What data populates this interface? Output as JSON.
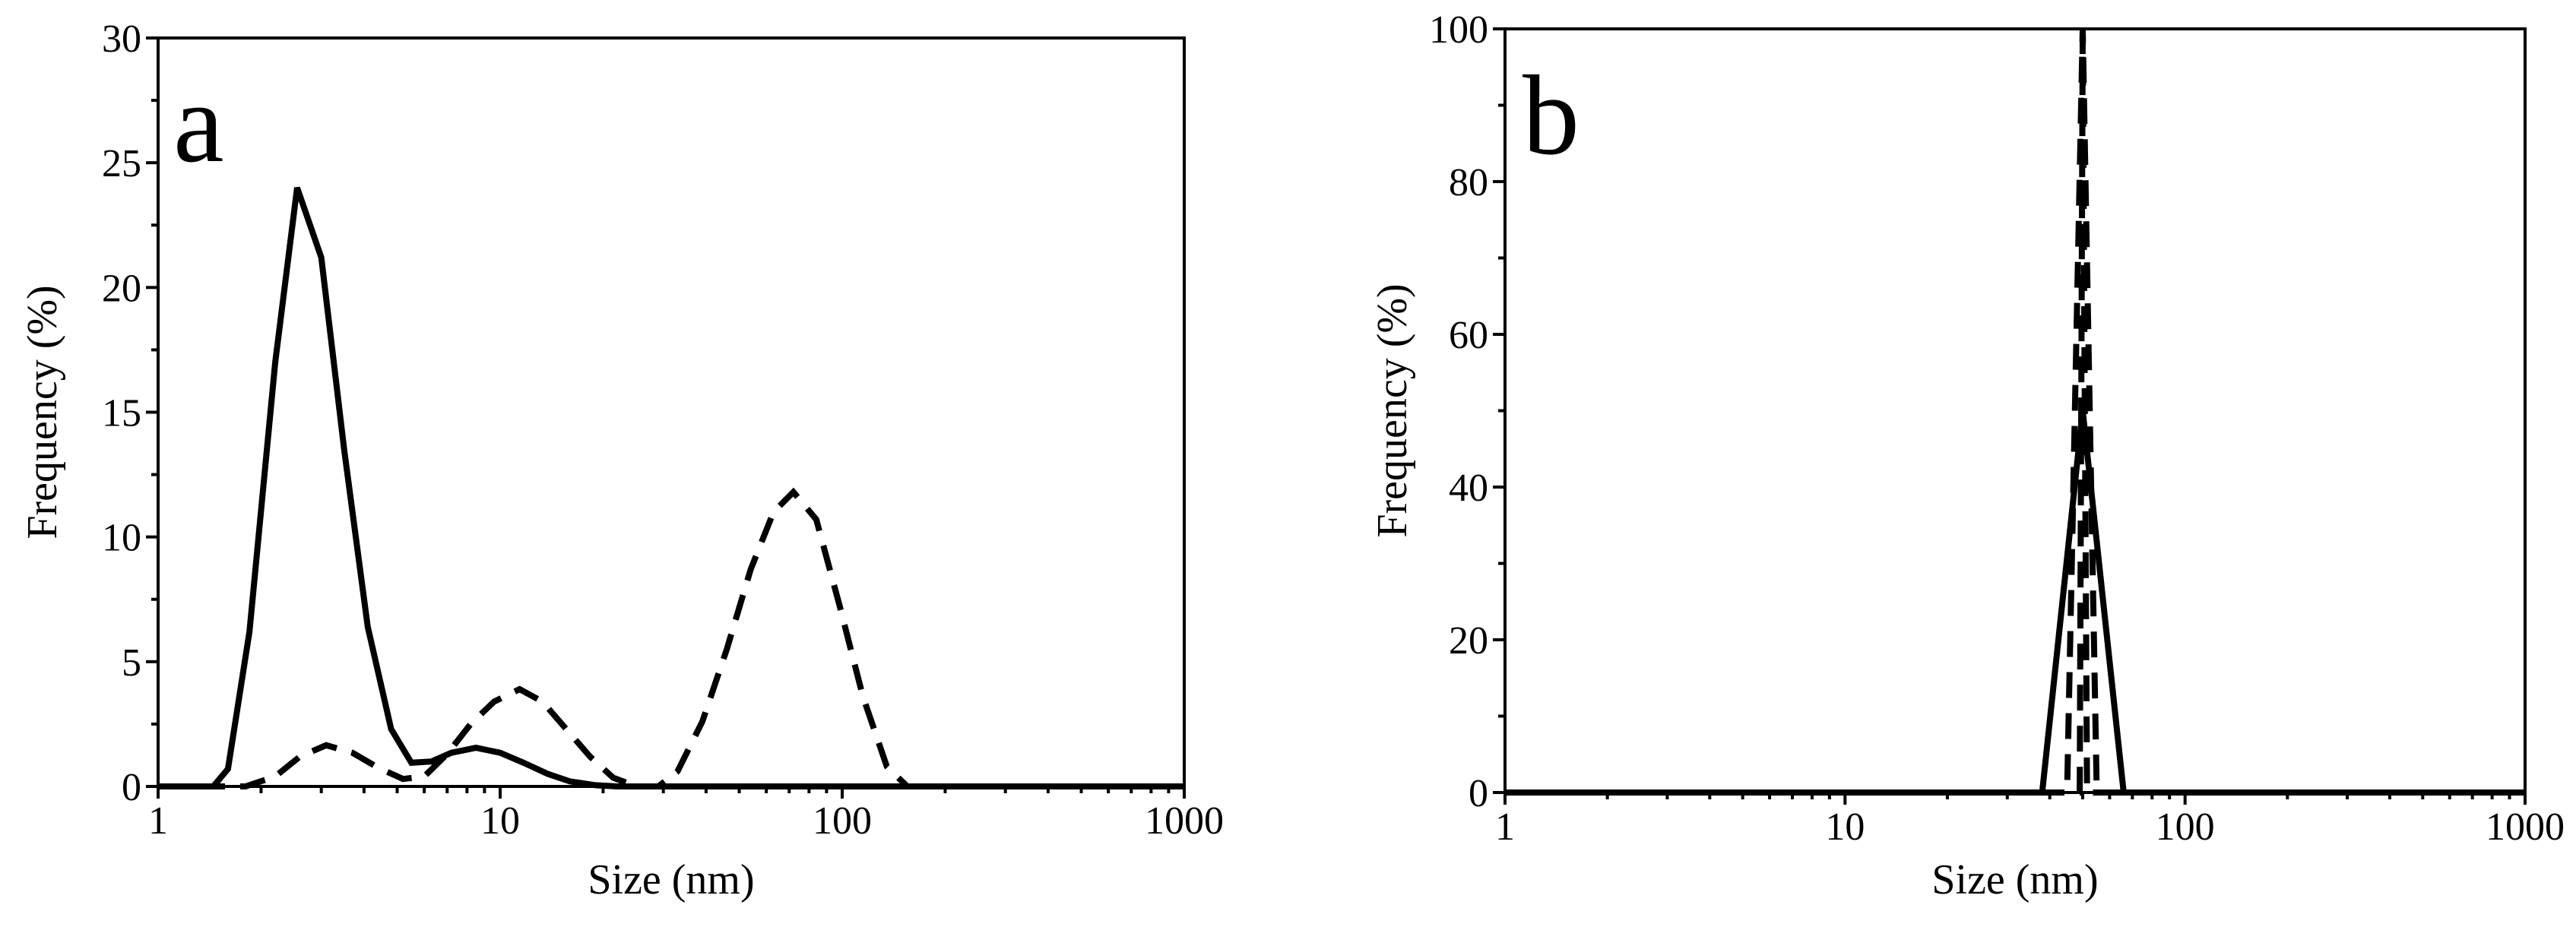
{
  "colors": {
    "line": "#000000",
    "background": "#ffffff"
  },
  "chart_data": [
    {
      "type": "line",
      "panel_label": "a",
      "xlabel": "Size (nm)",
      "ylabel": "Frequency (%)",
      "xscale": "log",
      "xlim": [
        1,
        1000
      ],
      "ylim": [
        0,
        30
      ],
      "xticks": [
        1,
        10,
        100,
        1000
      ],
      "xtick_labels": [
        "1",
        "10",
        "100",
        "1000"
      ],
      "yticks": [
        0,
        5,
        10,
        15,
        20,
        25,
        30
      ],
      "ytick_labels": [
        "0",
        "5",
        "10",
        "15",
        "20",
        "25",
        "30"
      ],
      "grid": false,
      "legend": "none",
      "series": [
        {
          "style": "solid",
          "points": [
            [
              1,
              0
            ],
            [
              1.45,
              0
            ],
            [
              1.6,
              0.7
            ],
            [
              1.85,
              6.2
            ],
            [
              2.2,
              17.0
            ],
            [
              2.55,
              24.0
            ],
            [
              3.0,
              21.2
            ],
            [
              3.5,
              13.5
            ],
            [
              4.1,
              6.4
            ],
            [
              4.8,
              2.3
            ],
            [
              5.5,
              0.95
            ],
            [
              6.3,
              1.0
            ],
            [
              7.2,
              1.35
            ],
            [
              8.5,
              1.55
            ],
            [
              10,
              1.35
            ],
            [
              11.7,
              0.95
            ],
            [
              13.8,
              0.5
            ],
            [
              16,
              0.2
            ],
            [
              19,
              0.05
            ],
            [
              22,
              0
            ],
            [
              1000,
              0
            ]
          ]
        },
        {
          "style": "dashed",
          "points": [
            [
              1,
              0
            ],
            [
              1.8,
              0
            ],
            [
              2.2,
              0.4
            ],
            [
              2.6,
              1.2
            ],
            [
              3.1,
              1.65
            ],
            [
              3.7,
              1.35
            ],
            [
              4.4,
              0.75
            ],
            [
              5.2,
              0.3
            ],
            [
              6,
              0.4
            ],
            [
              7,
              1.3
            ],
            [
              8.2,
              2.5
            ],
            [
              9.6,
              3.4
            ],
            [
              11.4,
              3.9
            ],
            [
              13.3,
              3.4
            ],
            [
              15.6,
              2.3
            ],
            [
              18.3,
              1.2
            ],
            [
              21.4,
              0.35
            ],
            [
              25,
              0
            ],
            [
              29,
              0
            ],
            [
              33,
              0.6
            ],
            [
              39,
              2.6
            ],
            [
              46,
              5.5
            ],
            [
              54,
              8.7
            ],
            [
              63,
              11.0
            ],
            [
              72,
              11.8
            ],
            [
              84,
              10.7
            ],
            [
              98,
              7.3
            ],
            [
              115,
              3.6
            ],
            [
              135,
              0.8
            ],
            [
              155,
              0
            ],
            [
              1000,
              0
            ]
          ]
        }
      ]
    },
    {
      "type": "line",
      "panel_label": "b",
      "xlabel": "Size (nm)",
      "ylabel": "Frequency (%)",
      "xscale": "log",
      "xlim": [
        1,
        1000
      ],
      "ylim": [
        0,
        100
      ],
      "xticks": [
        1,
        10,
        100,
        1000
      ],
      "xtick_labels": [
        "1",
        "10",
        "100",
        "1000"
      ],
      "yticks": [
        0,
        20,
        40,
        60,
        80,
        100
      ],
      "ytick_labels": [
        "0",
        "20",
        "40",
        "60",
        "80",
        "100"
      ],
      "grid": false,
      "legend": "none",
      "series": [
        {
          "style": "solid",
          "points": [
            [
              1,
              0
            ],
            [
              38,
              0
            ],
            [
              50,
              50
            ],
            [
              66,
              0
            ],
            [
              1000,
              0
            ]
          ]
        },
        {
          "style": "dashed",
          "points": [
            [
              1,
              0
            ],
            [
              45,
              0
            ],
            [
              50,
              100
            ],
            [
              55,
              0
            ],
            [
              1000,
              0
            ]
          ]
        },
        {
          "style": "dashed",
          "points": [
            [
              1,
              0
            ],
            [
              49,
              0
            ],
            [
              50,
              99
            ],
            [
              51.5,
              0
            ],
            [
              1000,
              0
            ]
          ]
        }
      ]
    }
  ]
}
